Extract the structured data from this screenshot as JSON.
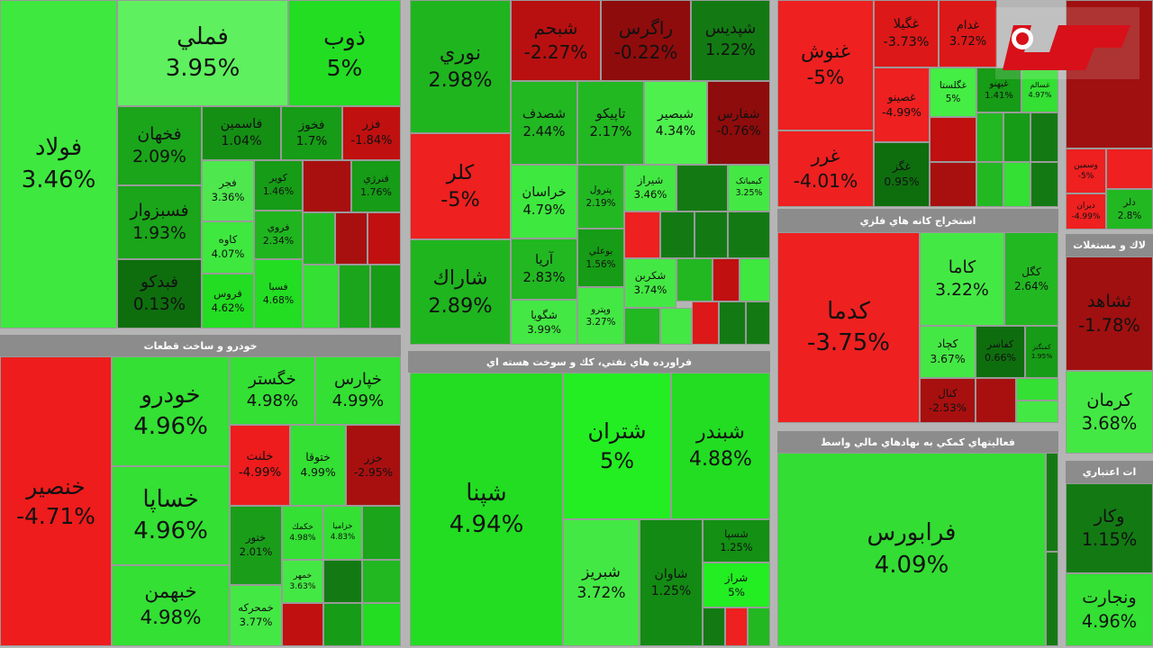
{
  "logo_alt": "رکنا",
  "sectors": [
    {
      "tiles": [
        {
          "name": "فولاد",
          "change": "3.46%",
          "color": "#3ee83e"
        },
        {
          "name": "فملي",
          "change": "3.95%",
          "color": "#5ef05e"
        },
        {
          "name": "ذوب",
          "change": "5%",
          "color": "#22dd22"
        },
        {
          "name": "فخهان",
          "change": "2.09%",
          "color": "#1aa51a"
        },
        {
          "name": "فسبزوار",
          "change": "1.93%",
          "color": "#1aa51a"
        },
        {
          "name": "فبدكو",
          "change": "0.13%",
          "color": "#0e6e0e"
        },
        {
          "name": "فاسمين",
          "change": "1.04%",
          "color": "#148f14"
        },
        {
          "name": "فخوز",
          "change": "1.7%",
          "color": "#169c16"
        },
        {
          "name": "فزر",
          "change": "-1.84%",
          "color": "#c01010"
        },
        {
          "name": "فجر",
          "change": "3.36%",
          "color": "#4ee84e"
        },
        {
          "name": "کاوه",
          "change": "4.07%",
          "color": "#3ee83e"
        },
        {
          "name": "فروس",
          "change": "4.62%",
          "color": "#22dd22"
        },
        {
          "name": "کویر",
          "change": "1.46%",
          "color": "#169c16"
        },
        {
          "name": "فروي",
          "change": "2.34%",
          "color": "#1fb51f"
        },
        {
          "name": "فسبا",
          "change": "4.68%",
          "color": "#22dd22"
        },
        {
          "name": "فنرژي",
          "change": "1.76%",
          "color": "#169c16"
        }
      ]
    },
    {
      "title": "خودرو و ساخت قطعات",
      "tiles": [
        {
          "name": "خنصير",
          "change": "-4.71%",
          "color": "#ee1c1c"
        },
        {
          "name": "خودرو",
          "change": "4.96%",
          "color": "#33e033"
        },
        {
          "name": "خساپا",
          "change": "4.96%",
          "color": "#33e033"
        },
        {
          "name": "خبهمن",
          "change": "4.98%",
          "color": "#33e033"
        },
        {
          "name": "خگستر",
          "change": "4.98%",
          "color": "#33e033"
        },
        {
          "name": "خپارس",
          "change": "4.99%",
          "color": "#33e033"
        },
        {
          "name": "خلنت",
          "change": "-4.99%",
          "color": "#ee1c1c"
        },
        {
          "name": "ختوقا",
          "change": "4.99%",
          "color": "#33e033"
        },
        {
          "name": "خزر",
          "change": "-2.95%",
          "color": "#a81010"
        },
        {
          "name": "ختور",
          "change": "2.01%",
          "color": "#1a9e1a"
        },
        {
          "name": "خمحرکه",
          "change": "3.77%",
          "color": "#44e844"
        },
        {
          "name": "خکمك",
          "change": "4.98%",
          "color": "#33e033"
        },
        {
          "name": "خزاميا",
          "change": "4.83%",
          "color": "#33e033"
        },
        {
          "name": "خمهر",
          "change": "3.63%",
          "color": "#44e844"
        }
      ]
    },
    {
      "tiles": [
        {
          "name": "نوري",
          "change": "2.98%",
          "color": "#1fb51f"
        },
        {
          "name": "کلر",
          "change": "-5%",
          "color": "#ee2020"
        },
        {
          "name": "شاراك",
          "change": "2.89%",
          "color": "#1fb51f"
        },
        {
          "name": "شبحم",
          "change": "-2.27%",
          "color": "#b81010"
        },
        {
          "name": "راگرس",
          "change": "-0.22%",
          "color": "#8e0c0c"
        },
        {
          "name": "شپدیس",
          "change": "1.22%",
          "color": "#137a13"
        },
        {
          "name": "شصدف",
          "change": "2.44%",
          "color": "#22b822"
        },
        {
          "name": "تاپيكو",
          "change": "2.17%",
          "color": "#22b822"
        },
        {
          "name": "شبصير",
          "change": "4.34%",
          "color": "#4ef04e"
        },
        {
          "name": "شفارس",
          "change": "-0.76%",
          "color": "#8e0c0c"
        },
        {
          "name": "خراسان",
          "change": "4.79%",
          "color": "#3ee83e"
        },
        {
          "name": "پترول",
          "change": "2.19%",
          "color": "#22b822"
        },
        {
          "name": "شیراز",
          "change": "3.46%",
          "color": "#44e844"
        },
        {
          "name": "کیمیاتک",
          "change": "3.25%",
          "color": "#44e844"
        },
        {
          "name": "آريا",
          "change": "2.83%",
          "color": "#22b822"
        },
        {
          "name": "شگويا",
          "change": "3.99%",
          "color": "#44e844"
        },
        {
          "name": "بوعلي",
          "change": "1.56%",
          "color": "#169c16"
        },
        {
          "name": "وپترو",
          "change": "3.27%",
          "color": "#44e844"
        },
        {
          "name": "شکربن",
          "change": "3.74%",
          "color": "#44e844"
        }
      ]
    },
    {
      "title": "فراورده هاي نفتي، كك و سوخت هسته اي",
      "tiles": [
        {
          "name": "شپنا",
          "change": "4.94%",
          "color": "#22dd22"
        },
        {
          "name": "شتران",
          "change": "5%",
          "color": "#22ee22"
        },
        {
          "name": "شبندر",
          "change": "4.88%",
          "color": "#22dd22"
        },
        {
          "name": "شبريز",
          "change": "3.72%",
          "color": "#44e844"
        },
        {
          "name": "شاوان",
          "change": "1.25%",
          "color": "#138a13"
        },
        {
          "name": "شسپا",
          "change": "1.25%",
          "color": "#149014"
        },
        {
          "name": "شراز",
          "change": "5%",
          "color": "#22ee22"
        }
      ]
    },
    {
      "tiles": [
        {
          "name": "غنوش",
          "change": "-5%",
          "color": "#ee2020"
        },
        {
          "name": "غرر",
          "change": "-4.01%",
          "color": "#ee2020"
        },
        {
          "name": "غگيلا",
          "change": "-3.73%",
          "color": "#dd1818"
        },
        {
          "name": "غدام",
          "change": "3.72%",
          "color": "#dd1818"
        },
        {
          "name": "غصينو",
          "change": "-4.99%",
          "color": "#ee2020"
        },
        {
          "name": "غگلستا",
          "change": "5%",
          "color": "#44ee44"
        },
        {
          "name": "غگز",
          "change": "0.95%",
          "color": "#0e6e0e"
        },
        {
          "name": "غبهنو",
          "change": "1.41%",
          "color": "#169c16"
        },
        {
          "name": "غسالم",
          "change": "4.97%",
          "color": "#33e033"
        }
      ]
    },
    {
      "title": "استخراج كانه هاي فلزي",
      "tiles": [
        {
          "name": "كدما",
          "change": "-3.75%",
          "color": "#ee2020"
        },
        {
          "name": "كاما",
          "change": "3.22%",
          "color": "#44e844"
        },
        {
          "name": "كگل",
          "change": "2.64%",
          "color": "#22b822"
        },
        {
          "name": "كچاد",
          "change": "3.67%",
          "color": "#44e844"
        },
        {
          "name": "كفاسر",
          "change": "0.66%",
          "color": "#0e6e0e"
        },
        {
          "name": "كنال",
          "change": "-2.53%",
          "color": "#a81010"
        },
        {
          "name": "كمنگنز",
          "change": "1.95%",
          "color": "#169c16"
        }
      ]
    },
    {
      "title": "فعاليتهاي كمكي به نهادهاي مالي واسط",
      "tiles": [
        {
          "name": "فرابورس",
          "change": "4.09%",
          "color": "#33dd33"
        }
      ]
    },
    {
      "tiles": [
        {
          "name": "وسمين",
          "change": "-5%",
          "color": "#ee2020"
        },
        {
          "name": "دلر",
          "change": "2.8%",
          "color": "#22b822"
        },
        {
          "name": "ديران",
          "change": "-4.99%",
          "color": "#ee2020"
        }
      ]
    },
    {
      "title": "لاك و مستغلات",
      "tiles": [
        {
          "name": "ثشاهد",
          "change": "-1.78%",
          "color": "#a01010"
        },
        {
          "name": "كرمان",
          "change": "3.68%",
          "color": "#44e844"
        }
      ]
    },
    {
      "title": "ات اعتباري",
      "tiles": [
        {
          "name": "وكار",
          "change": "1.15%",
          "color": "#137a13"
        },
        {
          "name": "ونجارت",
          "change": "4.96%",
          "color": "#33e033"
        }
      ]
    }
  ]
}
